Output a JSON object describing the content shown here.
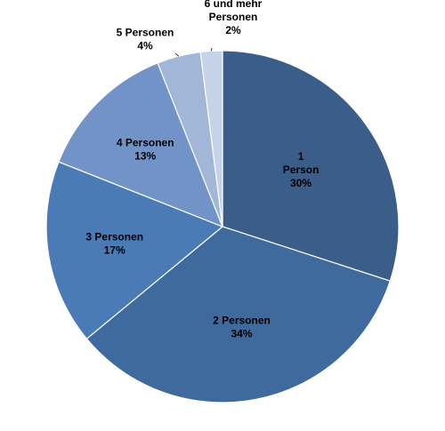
{
  "chart_data": {
    "type": "pie",
    "title": "",
    "start_angle_deg": 0,
    "direction": "clockwise",
    "slices": [
      {
        "label_lines": [
          "1",
          "Person"
        ],
        "value_label": "30%",
        "value": 30,
        "color": "#3a5d8a"
      },
      {
        "label_lines": [
          "2 Personen"
        ],
        "value_label": "34%",
        "value": 34,
        "color": "#3f6a9e"
      },
      {
        "label_lines": [
          "3 Personen"
        ],
        "value_label": "17%",
        "value": 17,
        "color": "#4a7bb7"
      },
      {
        "label_lines": [
          "4 Personen"
        ],
        "value_label": "13%",
        "value": 13,
        "color": "#7193c7"
      },
      {
        "label_lines": [
          "5 Personen"
        ],
        "value_label": "4%",
        "value": 4,
        "color": "#a2b6d8"
      },
      {
        "label_lines": [
          "6 und mehr",
          "Personen"
        ],
        "value_label": "2%",
        "value": 2,
        "color": "#c6d2e8"
      }
    ]
  }
}
